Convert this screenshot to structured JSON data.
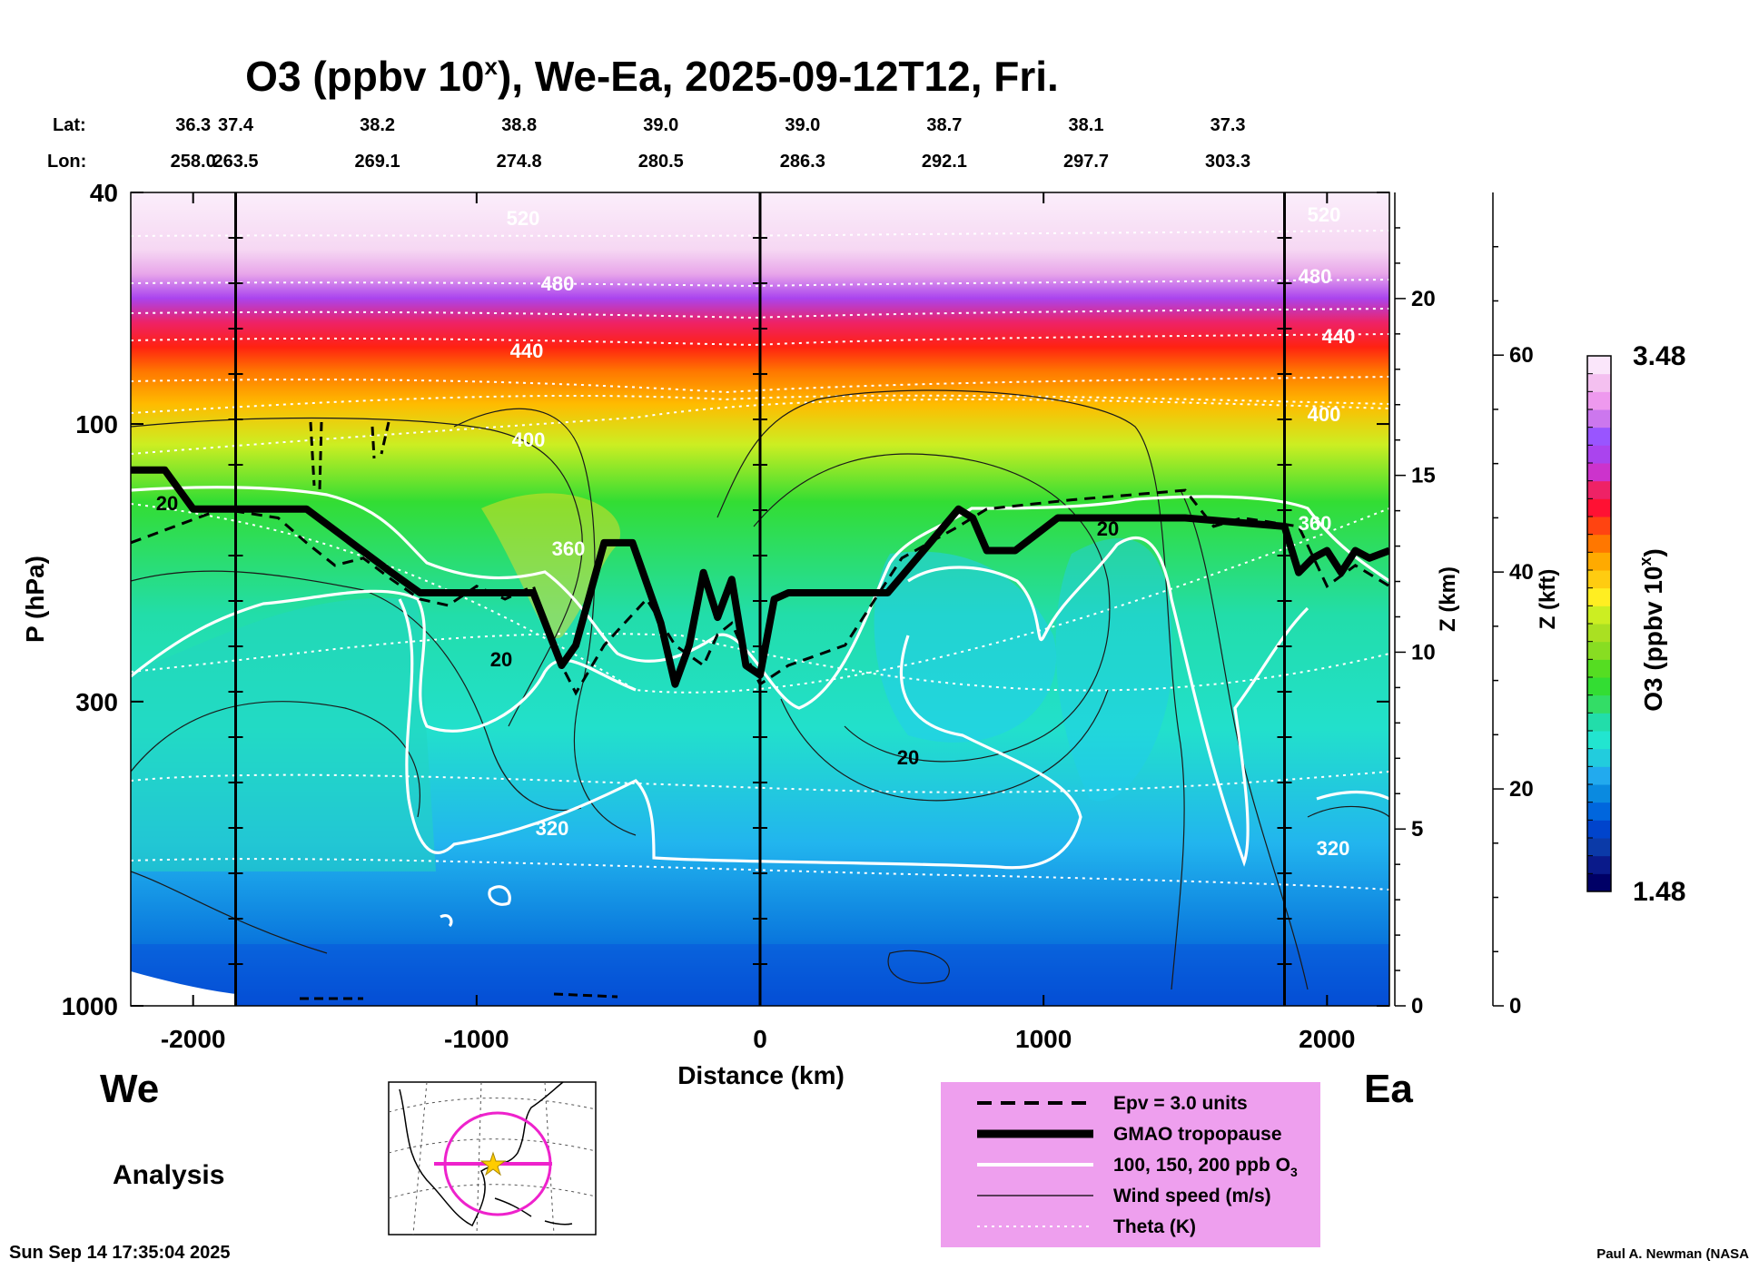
{
  "chart_data": {
    "type": "heatmap",
    "title": "O3 (ppbv 10",
    "title_sup": "x",
    "title_tail": "), We-Ea, 2025-09-12T12, Fri.",
    "lat_label": "Lat:",
    "lon_label": "Lon:",
    "lat": [
      "36.3",
      "37.4",
      "38.2",
      "38.8",
      "39.0",
      "39.0",
      "38.7",
      "38.1",
      "37.3"
    ],
    "lon": [
      "258.0",
      "263.5",
      "269.1",
      "274.8",
      "280.5",
      "286.3",
      "292.1",
      "297.7",
      "303.3"
    ],
    "header_x": [
      -2000,
      -1850,
      -1350,
      -850,
      -350,
      150,
      650,
      1150,
      1650
    ],
    "xlabel": "Distance (km)",
    "xlim": [
      -2220,
      2220
    ],
    "x_ticks": [
      -2000,
      -1000,
      0,
      1000,
      2000
    ],
    "x_tick_labels": [
      "-2000",
      "-1000",
      "0",
      "1000",
      "2000"
    ],
    "ylabel": "P (hPa)",
    "ylim_hpa": [
      1000,
      40
    ],
    "y_ticks": [
      40,
      100,
      300,
      1000
    ],
    "y_tick_labels": [
      "40",
      "100",
      "300",
      "1000"
    ],
    "z_km_label": "Z (km)",
    "z_km_ticks": [
      0,
      5,
      10,
      15,
      20
    ],
    "z_km_tick_labels": [
      "0",
      "5",
      "10",
      "15",
      "20"
    ],
    "z_kft_label": "Z (kft)",
    "z_kft_ticks": [
      0,
      20,
      40,
      60
    ],
    "z_kft_tick_labels": [
      "0",
      "20",
      "40",
      "60"
    ],
    "vertical_markers": [
      -1850,
      0,
      1850
    ],
    "colorbar": {
      "label": "O3 (ppbv 10",
      "label_sup": "x",
      "label_tail": ")",
      "min": 1.48,
      "max": 3.48,
      "min_label": "1.48",
      "max_label": "3.48",
      "colors": [
        "#000066",
        "#0a1a8a",
        "#0b3aa8",
        "#0044cc",
        "#0066dd",
        "#0a8ae0",
        "#22aaee",
        "#22ccdd",
        "#22e5d0",
        "#22ddaa",
        "#33dd66",
        "#33dd33",
        "#55dd22",
        "#88dd22",
        "#aae022",
        "#ccee22",
        "#ffee22",
        "#ffcc11",
        "#ffaa00",
        "#ff7700",
        "#ff4411",
        "#ff1133",
        "#ee2266",
        "#cc33cc",
        "#aa44ee",
        "#9955ff",
        "#cc77ee",
        "#ee99ee",
        "#f4c0f0",
        "#fae6fa"
      ]
    },
    "theta_K": [
      320,
      360,
      400,
      440,
      480,
      520
    ],
    "theta_labels": [
      "320",
      "360",
      "400",
      "440",
      "480",
      "520"
    ],
    "wind_label": "20",
    "tropopause_hpa": {
      "x": [
        -2220,
        -2100,
        -2000,
        -1850,
        -1600,
        -1300,
        -1200,
        -1100,
        -800,
        -700,
        -650,
        -550,
        -450,
        -350,
        -300,
        -250,
        -200,
        -150,
        -100,
        -50,
        0,
        50,
        100,
        450,
        600,
        700,
        750,
        800,
        900,
        1050,
        1100,
        1500,
        1850,
        1900,
        1950,
        2000,
        2050,
        2100,
        2150,
        2220
      ],
      "y": [
        120,
        120,
        140,
        140,
        140,
        180,
        195,
        195,
        195,
        260,
        240,
        160,
        160,
        220,
        280,
        240,
        180,
        215,
        185,
        260,
        270,
        200,
        195,
        195,
        160,
        140,
        145,
        165,
        165,
        145,
        145,
        145,
        150,
        180,
        170,
        165,
        180,
        165,
        170,
        165
      ]
    },
    "epv_hpa": {
      "x": [
        -2220,
        -1900,
        -1700,
        -1600,
        -1500,
        -1400,
        -1300,
        -1200,
        -1100,
        -1000,
        -900,
        -800,
        -700,
        -650,
        -550,
        -400,
        -300,
        -200,
        -150,
        -100,
        -50,
        0,
        100,
        300,
        500,
        700,
        800,
        1100,
        1500,
        1600,
        1700,
        1900,
        2000,
        2100,
        2220
      ],
      "y": [
        160,
        140,
        145,
        160,
        175,
        170,
        185,
        200,
        205,
        190,
        200,
        190,
        260,
        290,
        240,
        200,
        240,
        260,
        230,
        220,
        250,
        280,
        260,
        240,
        170,
        150,
        140,
        135,
        130,
        150,
        145,
        150,
        190,
        175,
        190
      ]
    },
    "ozone_contours": [
      "100",
      "150",
      "200"
    ],
    "region_left": "We",
    "region_right": "Ea",
    "mode": "Analysis",
    "timestamp": "Sun Sep 14 17:35:04 2025",
    "credit": "Paul A. Newman (NASA",
    "legend": [
      {
        "label": "Epv = 3.0 units",
        "style": "dashed"
      },
      {
        "label": "GMAO tropopause",
        "style": "thick"
      },
      {
        "label": "100, 150, 200 ppb O",
        "label_sub": "3",
        "style": "white"
      },
      {
        "label": "Wind speed (m/s)",
        "style": "thin"
      },
      {
        "label": "Theta (K)",
        "style": "dotted"
      }
    ],
    "legend_bg": "#ee9fee"
  }
}
